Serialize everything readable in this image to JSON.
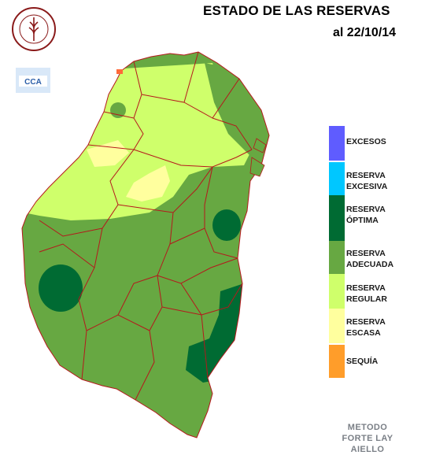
{
  "title": "ESTADO DE LAS RESERVAS",
  "date": "al 22/10/14",
  "logos": {
    "bolsa_text": "BOLSA DE CEREALES DE ENTRE RIOS",
    "cca_text": "CCA"
  },
  "legend": [
    {
      "label": "EXCESOS",
      "color": "#5f5cff"
    },
    {
      "label": "RESERVA\nEXCESIVA",
      "color": "#00c7ff"
    },
    {
      "label": "RESERVA\nÓPTIMA",
      "color": "#006b33"
    },
    {
      "label": "RESERVA\nADECUADA",
      "color": "#67a842"
    },
    {
      "label": "RESERVA\nREGULAR",
      "color": "#cfff6b"
    },
    {
      "label": "RESERVA\nESCASA",
      "color": "#ffff9e"
    },
    {
      "label": "SEQUÍA",
      "color": "#ff9d2a"
    }
  ],
  "method": "METODO\nFORTE LAY\nAIELLO"
}
